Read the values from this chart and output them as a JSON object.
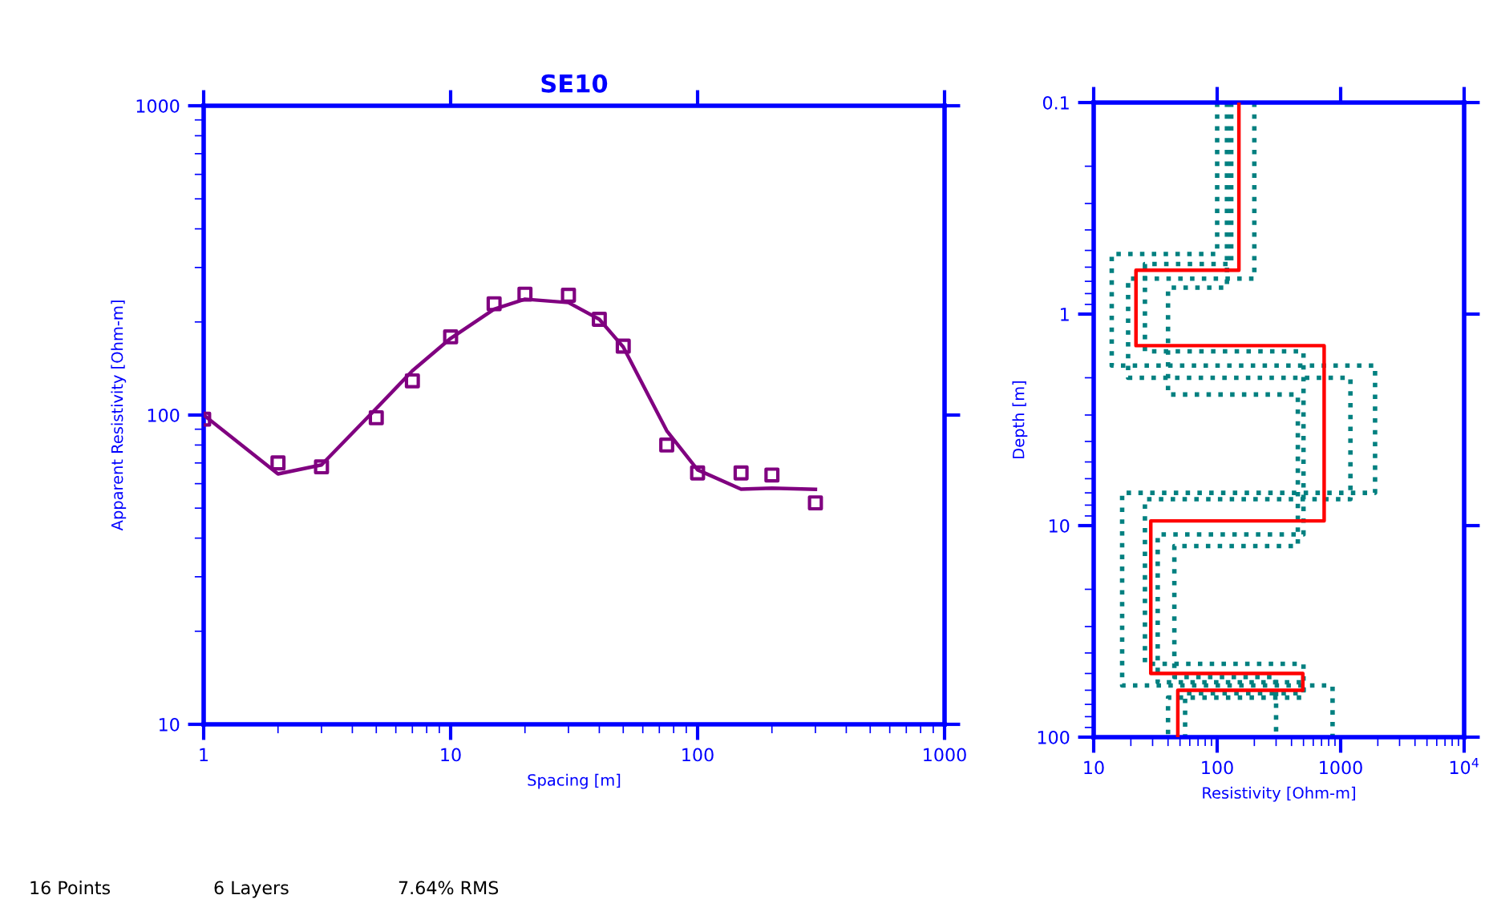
{
  "chart_data": [
    {
      "type": "scatter",
      "title": "SE10",
      "xlabel": "Spacing [m]",
      "ylabel": "Apparent Resistivity [Ohm-m]",
      "log": "xy",
      "xlim": [
        1,
        1000
      ],
      "ylim": [
        10,
        1000
      ],
      "xticks": [
        1,
        10,
        100,
        1000
      ],
      "yticks": [
        10,
        100,
        1000
      ],
      "grid": false,
      "legend": false,
      "x": [
        1,
        2,
        3,
        5,
        7,
        10,
        15,
        20,
        30,
        40,
        50,
        75,
        100,
        150,
        200,
        300
      ],
      "series": [
        {
          "type": "scatter",
          "color": "#800080",
          "marker": "square",
          "values": [
            97,
            70,
            68,
            98,
            129,
            179,
            229,
            246,
            244,
            204,
            167,
            80,
            65,
            65,
            64,
            52
          ]
        },
        {
          "type": "line",
          "color": "#800080",
          "marker": "none",
          "line_style": "solid",
          "values": [
            100,
            64.5,
            69,
            105,
            139,
            177,
            220,
            237,
            231,
            204,
            166,
            89,
            66.5,
            57.6,
            58,
            57.5
          ]
        }
      ],
      "annotations": [
        "16 Points",
        "6 Layers",
        "7.64% RMS"
      ]
    },
    {
      "type": "line",
      "xlabel": "Resistivity [Ohm-m]",
      "ylabel": "Depth [m]",
      "log": "xy",
      "grid": false,
      "legend": false,
      "xlim": [
        10,
        10000
      ],
      "ylim": [
        100,
        0.1
      ],
      "xticks": [
        10,
        100,
        1000,
        {
          "value": 10000,
          "label": "10$^{4}$"
        }
      ],
      "yticks": [
        0.1,
        1,
        10,
        100
      ],
      "series": [
        {
          "color": "#008080",
          "line_style": "dotted",
          "x": [
            100,
            100,
            14,
            14,
            1900,
            1900,
            17,
            17,
            860,
            860
          ],
          "values": [
            0.1,
            0.52,
            0.52,
            1.75,
            1.75,
            7.0,
            7.0,
            57,
            57,
            100
          ]
        },
        {
          "color": "#008080",
          "line_style": "dotted",
          "x": [
            200,
            200,
            19,
            19,
            1200,
            1200,
            26,
            26,
            500,
            500,
            40,
            40
          ],
          "values": [
            0.1,
            0.68,
            0.68,
            2.0,
            2.0,
            7.5,
            7.5,
            45,
            45,
            65,
            65,
            100
          ]
        },
        {
          "color": "#008080",
          "line_style": "dotted",
          "x": [
            130,
            130,
            26,
            26,
            500,
            500,
            33,
            33,
            500,
            500,
            55,
            55
          ],
          "values": [
            0.1,
            0.58,
            0.58,
            1.5,
            1.5,
            11,
            11,
            55,
            55,
            62,
            62,
            100
          ]
        },
        {
          "color": "#008080",
          "line_style": "dotted",
          "x": [
            120,
            120,
            40,
            40,
            450,
            450,
            45,
            45,
            300,
            300
          ],
          "values": [
            0.1,
            0.75,
            0.75,
            2.4,
            2.4,
            12.5,
            12.5,
            52,
            52,
            100
          ]
        },
        {
          "color": "#ff0000",
          "line_style": "solid",
          "x": [
            150,
            150,
            22,
            22,
            735,
            735,
            29,
            29,
            494,
            494,
            48,
            48
          ],
          "values": [
            0.1,
            0.62,
            0.62,
            1.41,
            1.41,
            9.5,
            9.5,
            50,
            50,
            60,
            60,
            100
          ]
        }
      ]
    }
  ]
}
